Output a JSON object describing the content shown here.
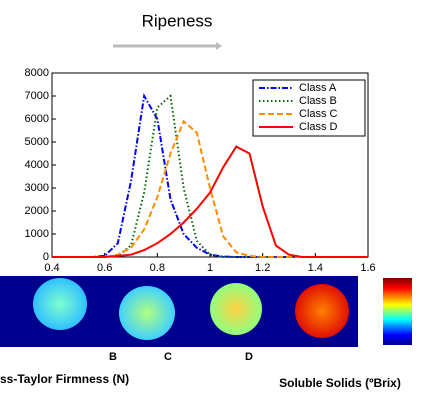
{
  "chart_data": {
    "type": "line",
    "title": "Ripeness",
    "x": [
      0.4,
      0.45,
      0.5,
      0.55,
      0.6,
      0.65,
      0.7,
      0.75,
      0.8,
      0.85,
      0.9,
      0.95,
      1.0,
      1.05,
      1.1,
      1.15,
      1.2,
      1.25,
      1.3,
      1.35,
      1.4,
      1.45,
      1.5,
      1.55,
      1.6
    ],
    "series": [
      {
        "name": "Class A",
        "color": "#0000ff",
        "style": "dashdot",
        "values": [
          0,
          0,
          0,
          0,
          50,
          600,
          3300,
          7000,
          6000,
          2500,
          1000,
          400,
          100,
          20,
          0,
          0,
          0,
          0,
          0,
          0,
          0,
          0,
          0,
          0,
          0
        ]
      },
      {
        "name": "Class B",
        "color": "#006400",
        "style": "dotted",
        "values": [
          0,
          0,
          0,
          0,
          0,
          50,
          500,
          2800,
          6500,
          7000,
          3000,
          700,
          100,
          0,
          0,
          0,
          0,
          0,
          0,
          0,
          0,
          0,
          0,
          0,
          0
        ]
      },
      {
        "name": "Class C",
        "color": "#ff8c00",
        "style": "dashed",
        "values": [
          0,
          0,
          0,
          0,
          0,
          100,
          400,
          1200,
          2600,
          4500,
          5900,
          5400,
          3000,
          900,
          200,
          50,
          0,
          0,
          0,
          0,
          0,
          0,
          0,
          0,
          0
        ]
      },
      {
        "name": "Class D",
        "color": "#ff0000",
        "style": "solid",
        "values": [
          0,
          0,
          0,
          0,
          0,
          50,
          100,
          300,
          600,
          1000,
          1500,
          2100,
          2800,
          3900,
          4800,
          4500,
          2200,
          500,
          100,
          0,
          0,
          0,
          0,
          0,
          0
        ]
      }
    ],
    "xlim": [
      0.4,
      1.6
    ],
    "xticks": [
      0.4,
      0.6,
      0.8,
      1,
      1.2,
      1.4,
      1.6
    ],
    "ylim": [
      0,
      8000
    ],
    "yticks": [
      0,
      1000,
      2000,
      3000,
      4000,
      5000,
      6000,
      7000,
      8000
    ],
    "legend": "upper right",
    "image_labels": [
      "B",
      "C",
      "D"
    ],
    "firmness_label": "ss-Taylor Firmness (N)",
    "solids_label": "Soluble Solids (ºBrix)"
  }
}
